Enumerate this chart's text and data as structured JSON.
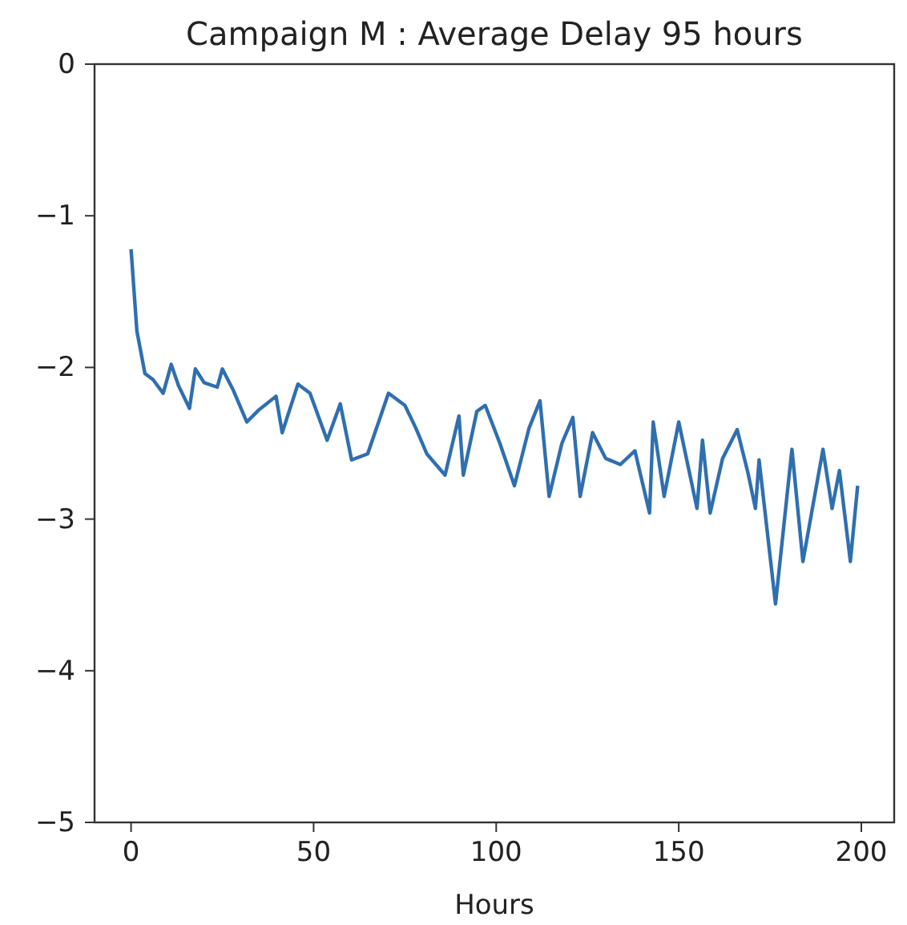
{
  "chart_data": {
    "type": "line",
    "title": "Campaign M : Average Delay 95 hours",
    "xlabel": "Hours",
    "xlim": [
      -10,
      209
    ],
    "ylim": [
      -5,
      0
    ],
    "xticks": [
      0,
      50,
      100,
      150,
      200
    ],
    "yticks": [
      0,
      -1,
      -2,
      -3,
      -4,
      -5
    ],
    "series": [
      {
        "color": "#2f6fb0",
        "x": [
          0,
          1.6,
          3.8,
          6,
          8.8,
          11,
          13,
          16,
          17.6,
          20,
          23.6,
          25,
          28,
          31.7,
          35,
          39.7,
          41.4,
          45.7,
          49,
          53.7,
          57.3,
          60.4,
          64.8,
          70.5,
          75,
          78,
          81,
          86,
          89.8,
          91,
          94.7,
          97,
          101,
          105,
          109,
          112,
          114.5,
          118,
          121,
          123,
          126.4,
          130,
          134,
          138,
          142,
          143,
          146,
          150,
          155,
          156.5,
          158.6,
          162,
          166,
          169,
          171,
          172,
          176.5,
          181,
          184,
          189.5,
          192,
          194,
          197,
          199
        ],
        "values": [
          -1.22,
          -1.76,
          -2.04,
          -2.08,
          -2.17,
          -1.98,
          -2.12,
          -2.27,
          -2.01,
          -2.1,
          -2.13,
          -2.01,
          -2.15,
          -2.36,
          -2.28,
          -2.19,
          -2.43,
          -2.11,
          -2.17,
          -2.48,
          -2.24,
          -2.61,
          -2.57,
          -2.17,
          -2.25,
          -2.4,
          -2.57,
          -2.71,
          -2.32,
          -2.71,
          -2.29,
          -2.25,
          -2.5,
          -2.78,
          -2.4,
          -2.22,
          -2.85,
          -2.5,
          -2.33,
          -2.85,
          -2.43,
          -2.6,
          -2.64,
          -2.55,
          -2.96,
          -2.36,
          -2.85,
          -2.36,
          -2.93,
          -2.48,
          -2.96,
          -2.6,
          -2.41,
          -2.7,
          -2.93,
          -2.61,
          -3.56,
          -2.54,
          -3.28,
          -2.54,
          -2.93,
          -2.68,
          -3.28,
          -2.78
        ]
      }
    ]
  }
}
